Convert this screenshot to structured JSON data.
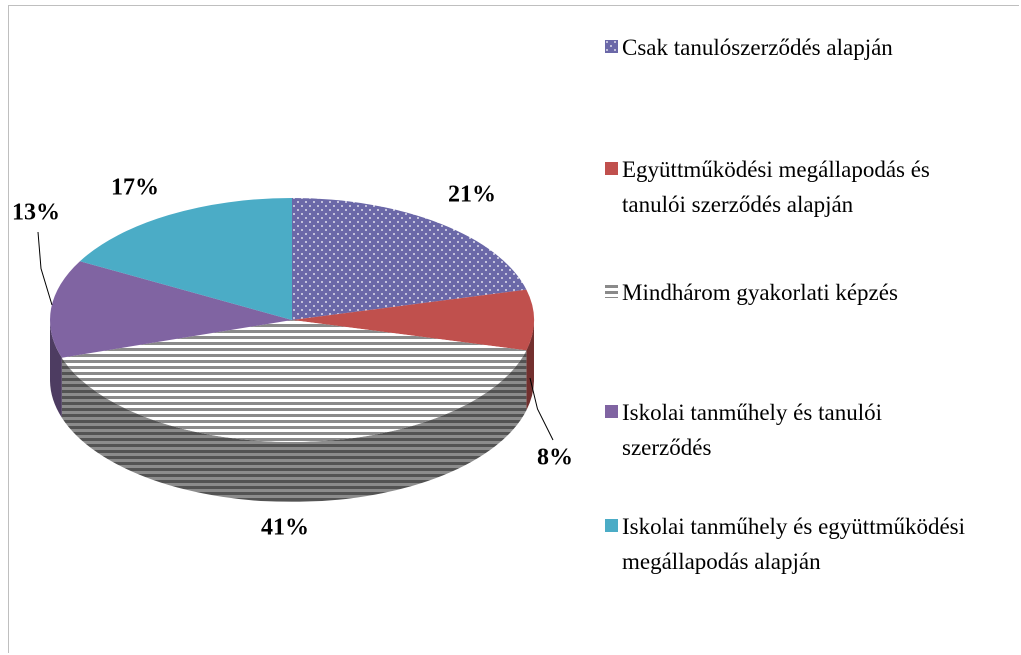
{
  "chart_data": {
    "type": "pie3d",
    "categories": [
      "Csak tanulószerződés alapján",
      "Együttműködési megállapodás és tanulói szerződés alapján",
      "Mindhárom gyakorlati képzés",
      "Iskolai tanműhely és tanulói szerződés",
      "Iskolai tanműhely és együttműködési megállapodás alapján"
    ],
    "values": [
      21,
      8,
      41,
      13,
      17
    ],
    "value_labels": [
      "21%",
      "8%",
      "41%",
      "13%",
      "17%"
    ],
    "colors": [
      "#6b68a8",
      "#c0504d",
      "#8a8a8a",
      "#8064a2",
      "#4bacc6"
    ],
    "patterns": [
      "dots",
      null,
      "stripes",
      null,
      null
    ],
    "legend": "right"
  }
}
